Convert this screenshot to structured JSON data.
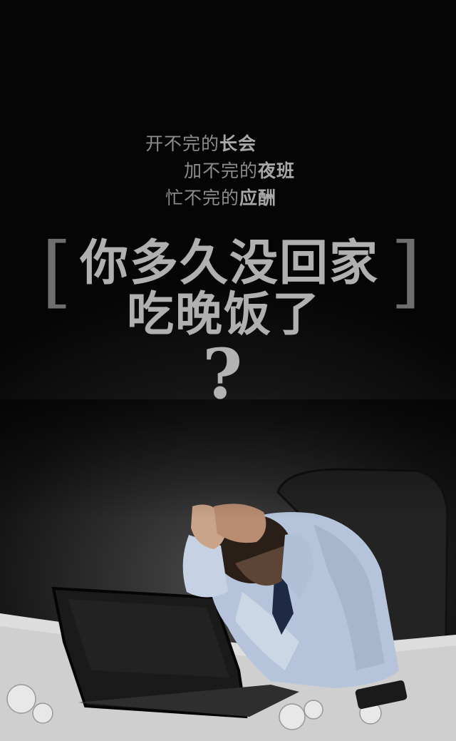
{
  "lines": [
    {
      "normal": "开不完的",
      "bold": "长会"
    },
    {
      "normal": "加不完的",
      "bold": "夜班"
    },
    {
      "normal": "忙不完的",
      "bold": "应酬"
    }
  ],
  "headline": {
    "bracket_left": "[",
    "bracket_right": "]",
    "line1": "你多久没回家",
    "line2": "吃晚饭了",
    "question_mark": "?"
  }
}
